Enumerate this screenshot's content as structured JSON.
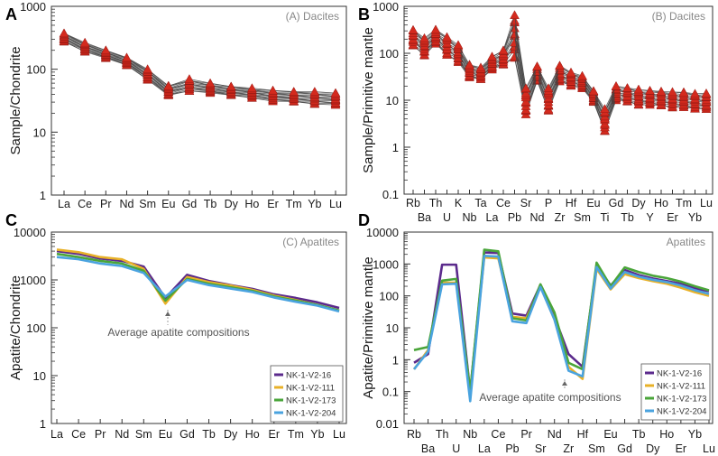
{
  "chart_data": [
    {
      "panel_letter": "A",
      "type": "line",
      "title": "(A) Dacites",
      "ylabel": "Sample/Chondrite",
      "xlabel": "",
      "yscale": "log",
      "ylim": [
        1,
        1000
      ],
      "yticks": [
        1,
        10,
        100,
        1000
      ],
      "categories": [
        "La",
        "Ce",
        "Pr",
        "Nd",
        "Sm",
        "Eu",
        "Gd",
        "Tb",
        "Dy",
        "Ho",
        "Er",
        "Tm",
        "Yb",
        "Lu"
      ],
      "grid": false,
      "marker": "triangle",
      "marker_color": "#d42a1e",
      "series_color": "#444444",
      "envelope": [
        {
          "name": "lower",
          "values": [
            270,
            190,
            150,
            115,
            68,
            38,
            45,
            42,
            38,
            35,
            31,
            30,
            28,
            27
          ]
        },
        {
          "name": "upper",
          "values": [
            380,
            265,
            200,
            155,
            100,
            55,
            70,
            60,
            54,
            50,
            46,
            45,
            44,
            42
          ]
        }
      ],
      "series_count": 14
    },
    {
      "panel_letter": "B",
      "type": "line",
      "title": "(B) Dacites",
      "ylabel": "Sample/Primitive mantle",
      "xlabel": "",
      "yscale": "log",
      "ylim": [
        0.1,
        1000
      ],
      "yticks": [
        0.1,
        1,
        10,
        100,
        1000
      ],
      "categories": [
        "Rb",
        "Ba",
        "Th",
        "U",
        "K",
        "Nb",
        "Ta",
        "La",
        "Ce",
        "Pb",
        "Sr",
        "Nd",
        "P",
        "Zr",
        "Hf",
        "Sm",
        "Eu",
        "Ti",
        "Gd",
        "Tb",
        "Dy",
        "Y",
        "Ho",
        "Er",
        "Tm",
        "Yb",
        "Lu"
      ],
      "label_rows": "alternating",
      "grid": false,
      "marker": "triangle",
      "marker_color": "#d42a1e",
      "series_color": "#444444",
      "envelope": [
        {
          "name": "lower",
          "values": [
            140,
            90,
            160,
            90,
            65,
            30,
            28,
            45,
            55,
            80,
            5,
            25,
            6,
            25,
            20,
            18,
            9,
            2.2,
            10,
            9,
            8,
            8,
            7.5,
            7,
            7,
            6.5,
            6.5
          ]
        },
        {
          "name": "upper",
          "values": [
            330,
            210,
            320,
            230,
            150,
            58,
            50,
            85,
            120,
            650,
            18,
            55,
            18,
            55,
            40,
            33,
            16,
            6.5,
            20,
            19,
            17,
            16,
            16,
            15,
            15,
            14,
            14
          ]
        }
      ],
      "series_count": 14
    },
    {
      "panel_letter": "C",
      "type": "line",
      "title": "(C) Apatites",
      "ylabel": "Apatite/Chondrite",
      "xlabel": "",
      "yscale": "log",
      "ylim": [
        1,
        10000
      ],
      "yticks": [
        1,
        10,
        100,
        1000,
        10000
      ],
      "categories": [
        "La",
        "Ce",
        "Pr",
        "Nd",
        "Sm",
        "Eu",
        "Gd",
        "Tb",
        "Dy",
        "Ho",
        "Er",
        "Tm",
        "Yb",
        "Lu"
      ],
      "grid": false,
      "annotation": "Average apatite compositions",
      "legend_position": "bottom-right",
      "series": [
        {
          "name": "NK-1-V2-16",
          "color": "#5b2a8c",
          "values": [
            4000,
            3500,
            2800,
            2500,
            1900,
            420,
            1280,
            950,
            780,
            650,
            500,
            420,
            340,
            260
          ]
        },
        {
          "name": "NK-1-V2-111",
          "color": "#e8b128",
          "values": [
            4300,
            3800,
            3000,
            2700,
            1700,
            320,
            1150,
            900,
            760,
            620,
            470,
            380,
            300,
            230
          ]
        },
        {
          "name": "NK-1-V2-173",
          "color": "#4aa53a",
          "values": [
            3500,
            3000,
            2500,
            2200,
            1550,
            370,
            1050,
            830,
            700,
            590,
            450,
            370,
            300,
            230
          ]
        },
        {
          "name": "NK-1-V2-204",
          "color": "#4aa3df",
          "values": [
            3000,
            2700,
            2200,
            1950,
            1400,
            450,
            1000,
            780,
            660,
            560,
            430,
            350,
            290,
            220
          ]
        }
      ]
    },
    {
      "panel_letter": "D",
      "type": "line",
      "title": "Apatites",
      "ylabel": "Apatite/Primitive mantle",
      "xlabel": "",
      "yscale": "log",
      "ylim": [
        0.01,
        10000
      ],
      "yticks": [
        0.01,
        0.1,
        1,
        10,
        100,
        1000,
        10000
      ],
      "categories": [
        "Rb",
        "Ba",
        "Th",
        "U",
        "Nb",
        "La",
        "Ce",
        "Pb",
        "Pr",
        "Sr",
        "Nd",
        "Zr",
        "Hf",
        "Sm",
        "Eu",
        "Gd",
        "Tb",
        "Dy",
        "Ho",
        "Er",
        "Yb",
        "Lu"
      ],
      "label_rows": "alternating",
      "grid": false,
      "annotation": "Average apatite compositions",
      "legend_position": "bottom-right",
      "series": [
        {
          "name": "NK-1-V2-16",
          "color": "#5b2a8c",
          "values": [
            0.8,
            1.5,
            950,
            950,
            0.1,
            2300,
            2200,
            28,
            24,
            220,
            22,
            1.5,
            0.6,
            900,
            210,
            650,
            450,
            350,
            290,
            240,
            170,
            140
          ]
        },
        {
          "name": "NK-1-V2-111",
          "color": "#e8b128",
          "values": [
            0.5,
            2.0,
            260,
            260,
            0.1,
            1600,
            1500,
            22,
            20,
            200,
            18,
            0.6,
            0.25,
            700,
            160,
            480,
            360,
            290,
            240,
            180,
            130,
            100
          ]
        },
        {
          "name": "NK-1-V2-173",
          "color": "#4aa53a",
          "values": [
            2.0,
            2.5,
            300,
            340,
            0.1,
            2800,
            2500,
            20,
            17,
            230,
            30,
            0.8,
            0.5,
            1100,
            200,
            780,
            560,
            430,
            360,
            280,
            200,
            150
          ]
        },
        {
          "name": "NK-1-V2-204",
          "color": "#4aa3df",
          "values": [
            0.5,
            1.8,
            230,
            240,
            0.05,
            1800,
            1700,
            16,
            14,
            190,
            18,
            0.45,
            0.3,
            800,
            170,
            560,
            400,
            320,
            270,
            210,
            150,
            115
          ]
        }
      ]
    }
  ]
}
